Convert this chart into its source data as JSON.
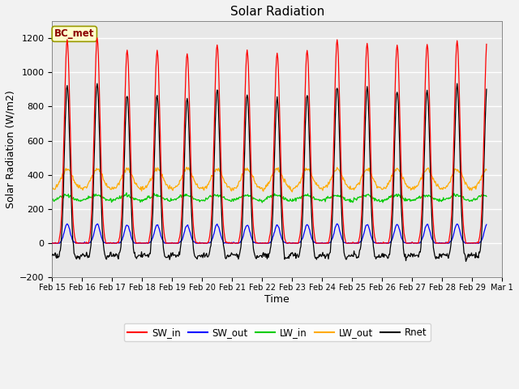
{
  "title": "Solar Radiation",
  "xlabel": "Time",
  "ylabel": "Solar Radiation (W/m2)",
  "ylim": [
    -200,
    1300
  ],
  "yticks": [
    -200,
    0,
    200,
    400,
    600,
    800,
    1000,
    1200
  ],
  "station_label": "BC_met",
  "n_days": 14.5,
  "bg_color": "#f2f2f2",
  "plot_bg_color": "#e8e8e8",
  "colors": {
    "SW_in": "#ff0000",
    "SW_out": "#0000ff",
    "LW_in": "#00cc00",
    "LW_out": "#ffaa00",
    "Rnet": "#000000"
  },
  "xtick_labels": [
    "Feb 15",
    "Feb 16",
    "Feb 17",
    "Feb 18",
    "Feb 19",
    "Feb 20",
    "Feb 21",
    "Feb 22",
    "Feb 23",
    "Feb 24",
    "Feb 25",
    "Feb 26",
    "Feb 27",
    "Feb 28",
    "Feb 29",
    "Mar 1"
  ],
  "day_peaks_SWin": [
    1190,
    1200,
    1130,
    1130,
    1110,
    1160,
    1130,
    1110,
    1130,
    1190,
    1170,
    1160,
    1165,
    1185,
    1190
  ]
}
